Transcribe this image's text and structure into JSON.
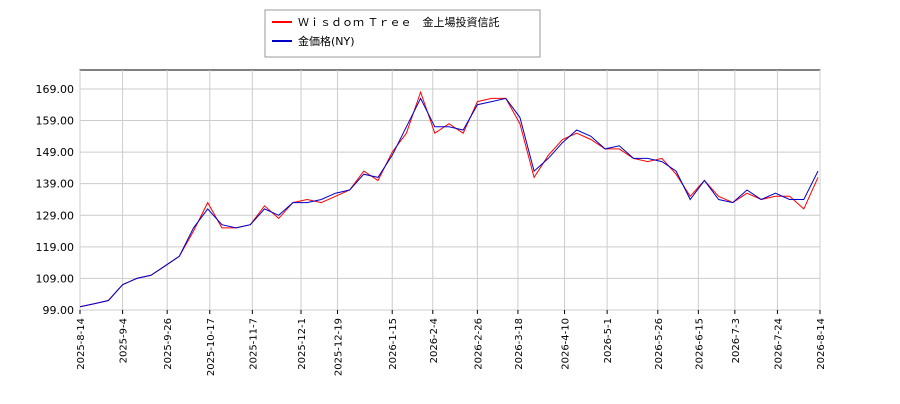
{
  "chart_data": {
    "type": "line",
    "x": [
      "2025-8-14",
      "2025-8-21",
      "2025-8-28",
      "2025-9-4",
      "2025-9-11",
      "2025-9-18",
      "2025-9-25",
      "2025-10-2",
      "2025-10-9",
      "2025-10-16",
      "2025-10-23",
      "2025-10-30",
      "2025-11-6",
      "2025-11-13",
      "2025-11-20",
      "2025-11-27",
      "2025-12-4",
      "2025-12-11",
      "2025-12-18",
      "2025-12-25",
      "2026-1-1",
      "2026-1-8",
      "2026-1-15",
      "2026-1-22",
      "2026-1-29",
      "2026-2-5",
      "2026-2-12",
      "2026-2-19",
      "2026-2-26",
      "2026-3-5",
      "2026-3-12",
      "2026-3-19",
      "2026-3-26",
      "2026-4-2",
      "2026-4-9",
      "2026-4-16",
      "2026-4-23",
      "2026-4-30",
      "2026-5-7",
      "2026-5-14",
      "2026-5-21",
      "2026-5-28",
      "2026-6-4",
      "2026-6-11",
      "2026-6-18",
      "2026-6-25",
      "2026-7-2",
      "2026-7-9",
      "2026-7-16",
      "2026-7-23",
      "2026-7-30",
      "2026-8-6",
      "2026-8-13"
    ],
    "series": [
      {
        "name": "Ｗｉｓｄｏｍ Ｔｒｅｅ　金上場投資信託",
        "color": "#ff0000",
        "values": [
          100,
          101,
          102,
          107,
          109,
          110,
          113,
          116,
          124,
          133,
          125,
          125,
          126,
          132,
          128,
          133,
          134,
          133,
          135,
          137,
          143,
          140,
          149,
          155,
          168,
          155,
          158,
          155,
          165,
          166,
          166,
          158,
          141,
          148,
          153,
          155,
          153,
          150,
          150,
          147,
          146,
          147,
          142,
          135,
          140,
          135,
          133,
          136,
          134,
          135,
          135,
          131,
          141
        ]
      },
      {
        "name": "金価格(NY)",
        "color": "#0000cc",
        "values": [
          100,
          101,
          102,
          107,
          109,
          110,
          113,
          116,
          125,
          131,
          126,
          125,
          126,
          131,
          129,
          133,
          133,
          134,
          136,
          137,
          142,
          141,
          148,
          157,
          166,
          157,
          157,
          156,
          164,
          165,
          166,
          160,
          143,
          147,
          152,
          156,
          154,
          150,
          151,
          147,
          147,
          146,
          143,
          134,
          140,
          134,
          133,
          137,
          134,
          136,
          134,
          134,
          143
        ]
      }
    ],
    "xlim": [
      "2025-8-14",
      "2026-8-14"
    ],
    "xticks": [
      "2025-8-14",
      "2025-9-4",
      "2025-9-26",
      "2025-10-17",
      "2025-11-7",
      "2025-12-1",
      "2025-12-19",
      "2026-1-15",
      "2026-2-4",
      "2026-2-26",
      "2026-3-18",
      "2026-4-10",
      "2026-5-1",
      "2026-5-26",
      "2026-6-15",
      "2026-7-3",
      "2026-7-24",
      "2026-8-14"
    ],
    "ylim": [
      99,
      175
    ],
    "yticks": [
      {
        "value": 99,
        "label": "99.00"
      },
      {
        "value": 109,
        "label": "109.00"
      },
      {
        "value": 119,
        "label": "119.00"
      },
      {
        "value": 129,
        "label": "129.00"
      },
      {
        "value": 139,
        "label": "139.00"
      },
      {
        "value": 149,
        "label": "149.00"
      },
      {
        "value": 159,
        "label": "159.00"
      },
      {
        "value": 169,
        "label": "169.00"
      }
    ],
    "grid": true
  }
}
